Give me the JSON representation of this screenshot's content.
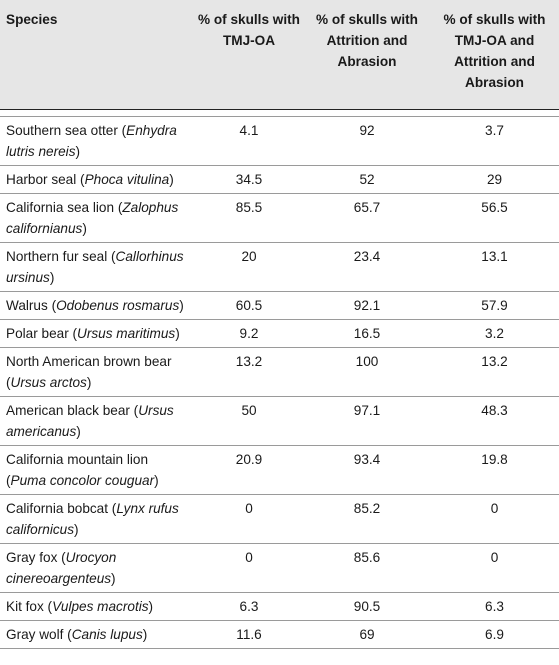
{
  "header": {
    "species": "Species",
    "col_tmj": "% of skulls with TMJ-OA",
    "col_attrition": "% of skulls with Attrition and Abrasion",
    "col_both": "% of skulls with TMJ-OA and Attrition and Abrasion"
  },
  "rows": [
    {
      "common": "Southern sea otter (",
      "latin": "Enhydra lutris nereis",
      "close": ")",
      "tmj": "4.1",
      "attrition": "92",
      "both": "3.7"
    },
    {
      "common": "Harbor seal (",
      "latin": "Phoca vitulina",
      "close": ")",
      "tmj": "34.5",
      "attrition": "52",
      "both": "29"
    },
    {
      "common": "California sea lion (",
      "latin": "Zalophus californianus",
      "close": ")",
      "tmj": "85.5",
      "attrition": "65.7",
      "both": "56.5"
    },
    {
      "common": "Northern fur seal (",
      "latin": "Callorhinus ursinus",
      "close": ")",
      "tmj": "20",
      "attrition": "23.4",
      "both": "13.1"
    },
    {
      "common": "Walrus (",
      "latin": "Odobenus rosmarus",
      "close": ")",
      "tmj": "60.5",
      "attrition": "92.1",
      "both": "57.9"
    },
    {
      "common": "Polar bear (",
      "latin": "Ursus maritimus",
      "close": ")",
      "tmj": "9.2",
      "attrition": "16.5",
      "both": "3.2"
    },
    {
      "common": "North American brown bear (",
      "latin": "Ursus arctos",
      "close": ")",
      "tmj": "13.2",
      "attrition": "100",
      "both": "13.2"
    },
    {
      "common": "American black bear (",
      "latin": "Ursus americanus",
      "close": ")",
      "tmj": "50",
      "attrition": "97.1",
      "both": "48.3"
    },
    {
      "common": "California mountain lion (",
      "latin": "Puma concolor couguar",
      "close": ")",
      "tmj": "20.9",
      "attrition": "93.4",
      "both": "19.8"
    },
    {
      "common": "California bobcat (",
      "latin": "Lynx rufus californicus",
      "close": ")",
      "tmj": "0",
      "attrition": "85.2",
      "both": "0"
    },
    {
      "common": "Gray fox (",
      "latin": "Urocyon cinereoargenteus",
      "close": ")",
      "tmj": "0",
      "attrition": "85.6",
      "both": "0"
    },
    {
      "common": "Kit fox (",
      "latin": "Vulpes macrotis",
      "close": ")",
      "tmj": "6.3",
      "attrition": "90.5",
      "both": "6.3"
    },
    {
      "common": "Gray wolf (",
      "latin": "Canis lupus",
      "close": ")",
      "tmj": "11.6",
      "attrition": "69",
      "both": "6.9"
    }
  ]
}
